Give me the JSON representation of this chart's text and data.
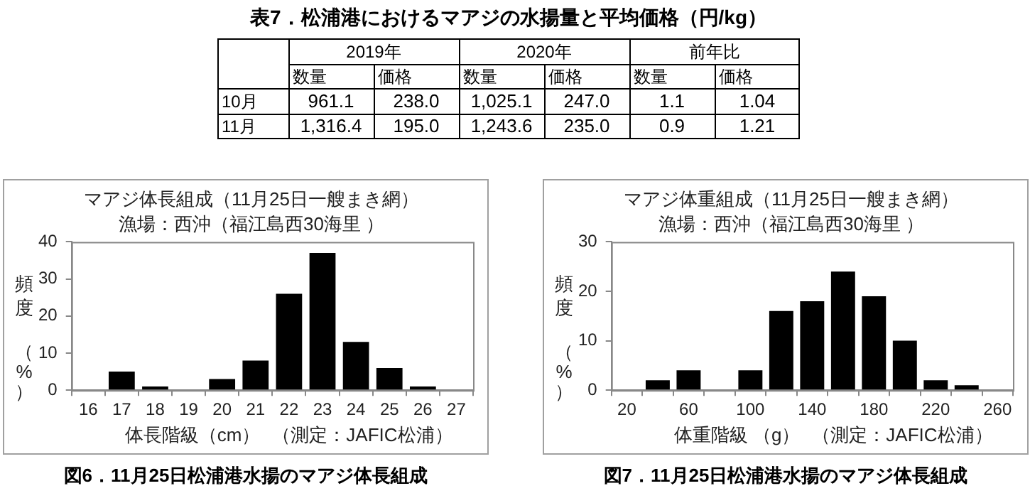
{
  "chart_data": [
    {
      "type": "heatmap",
      "title": "表7．松浦港におけるマアジの水揚量と平均価格（円/kg）",
      "categories": [
        "数量",
        "価格",
        "数量",
        "価格",
        "数量",
        "価格"
      ],
      "y_categories": [
        "10月",
        "11月"
      ],
      "cells": [
        [
          961.1,
          238.0,
          1025.1,
          247.0,
          1.1,
          1.04
        ],
        [
          1316.4,
          195.0,
          1243.6,
          235.0,
          0.9,
          1.21
        ]
      ],
      "cell_labels": [
        [
          "961.1",
          "238.0",
          "1,025.1",
          "247.0",
          "1.1",
          "1.04"
        ],
        [
          "1,316.4",
          "195.0",
          "1,243.6",
          "235.0",
          "0.9",
          "1.21"
        ]
      ],
      "annotations": [
        "2019年",
        "2020年",
        "前年比"
      ]
    },
    {
      "type": "bar",
      "title": "マアジ体長組成（11月25日一艘まき網）",
      "subtitle": "漁場：西沖（福江島西30海里 ）",
      "xlabel": "体長階級（cm）",
      "ylabel": "頻度（%）",
      "categories": [
        "16",
        "17",
        "18",
        "19",
        "20",
        "21",
        "22",
        "23",
        "24",
        "25",
        "26",
        "27"
      ],
      "values": [
        0,
        5,
        1,
        0,
        3,
        8,
        26,
        37,
        13,
        6,
        1,
        0
      ],
      "color": "#000000",
      "ylim": [
        0,
        40
      ],
      "yticks": [
        0,
        10,
        20,
        30,
        40
      ],
      "grid": false,
      "legend": false,
      "annotations": [
        "（測定：JAFIC松浦）",
        "図6．11月25日松浦港水揚のマアジ体長組成"
      ]
    },
    {
      "type": "bar",
      "title": "マアジ体重組成（11月25日一艘まき網）",
      "subtitle": "漁場：西沖（福江島西30海里 ）",
      "xlabel": "体重階級 （g）",
      "ylabel": "頻度（%）",
      "categories": [
        "20",
        null,
        "60",
        null,
        "100",
        null,
        "140",
        null,
        "180",
        null,
        "220",
        null,
        "260"
      ],
      "values": [
        0,
        2,
        4,
        0,
        4,
        16,
        18,
        24,
        19,
        10,
        2,
        1,
        0
      ],
      "color": "#000000",
      "ylim": [
        0,
        30
      ],
      "yticks": [
        0,
        10,
        20,
        30
      ],
      "grid": false,
      "legend": false,
      "annotations": [
        "（測定：JAFIC松浦）",
        "図7．11月25日松浦港水揚のマアジ体長組成"
      ]
    }
  ]
}
